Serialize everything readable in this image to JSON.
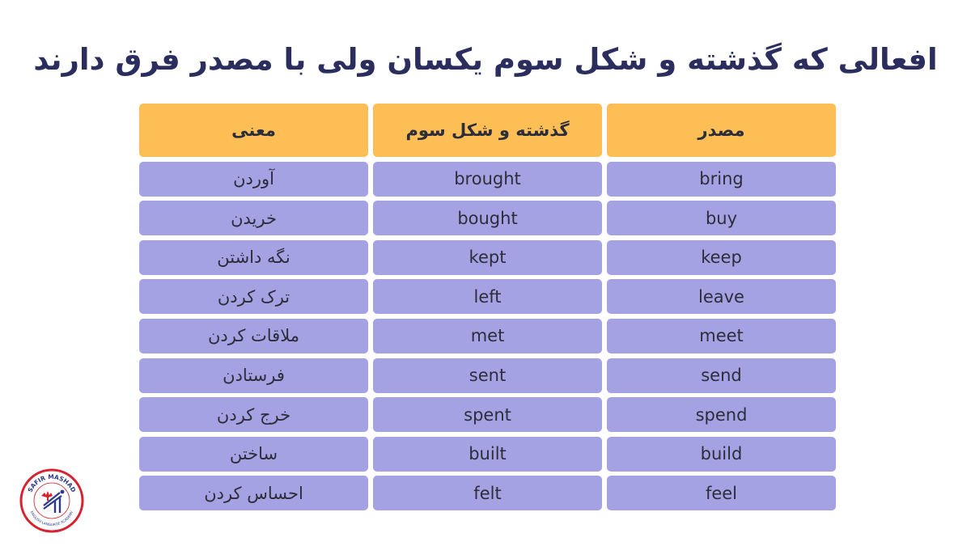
{
  "title": "افعالی که گذشته و شکل سوم یکسان ولی با مصدر فرق دارند",
  "table": {
    "headers": {
      "meaning": "معنی",
      "past_and_participle": "گذشته و شکل سوم",
      "infinitive": "مصدر"
    },
    "rows": [
      {
        "meaning": "آوردن",
        "past": "brought",
        "base": "bring"
      },
      {
        "meaning": "خریدن",
        "past": "bought",
        "base": "buy"
      },
      {
        "meaning": "نگه داشتن",
        "past": "kept",
        "base": "keep"
      },
      {
        "meaning": "ترک کردن",
        "past": "left",
        "base": "leave"
      },
      {
        "meaning": "ملاقات کردن",
        "past": "met",
        "base": "meet"
      },
      {
        "meaning": "فرستادن",
        "past": "sent",
        "base": "send"
      },
      {
        "meaning": "خرج کردن",
        "past": "spent",
        "base": "spend"
      },
      {
        "meaning": "ساختن",
        "past": "built",
        "base": "build"
      },
      {
        "meaning": "احساس کردن",
        "past": "felt",
        "base": "feel"
      }
    ]
  },
  "logo": {
    "top_text": "SAFIR MASHAD",
    "bottom_text": "ENGLISH LANGUAGE ACADEMY",
    "colors": {
      "ring": "#d6232f",
      "accent": "#2d3a8c",
      "flag": "#d6232f"
    }
  },
  "colors": {
    "title": "#2b2d5e",
    "header_bg": "#fdbf55",
    "cell_bg": "#a5a2e4"
  }
}
